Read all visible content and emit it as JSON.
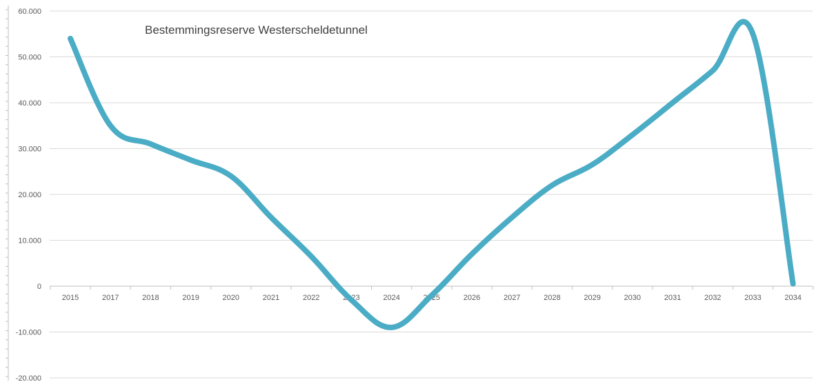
{
  "chart_data": {
    "type": "line",
    "title": "Bestemmingsreserve Westerscheldetunnel",
    "xlabel": "",
    "ylabel": "",
    "categories": [
      "2015",
      "2017",
      "2018",
      "2019",
      "2020",
      "2021",
      "2022",
      "2023",
      "2024",
      "2025",
      "2026",
      "2027",
      "2028",
      "2029",
      "2030",
      "2031",
      "2032",
      "2033",
      "2034"
    ],
    "series": [
      {
        "values": [
          54000,
          35000,
          31000,
          27500,
          24000,
          15000,
          6500,
          -3000,
          -9000,
          -2000,
          7000,
          15000,
          22000,
          26500,
          33000,
          40000,
          47000,
          55000,
          500
        ],
        "color": "#4bacc6"
      }
    ],
    "y_ticks": [
      60000,
      50000,
      40000,
      30000,
      20000,
      10000,
      0,
      -10000,
      -20000
    ],
    "y_tick_labels": [
      "60.000",
      "50.000",
      "40.000",
      "30.000",
      "20.000",
      "10.000",
      "0",
      "-10.000",
      "-20.000"
    ],
    "ylim": [
      -20000,
      60000
    ],
    "grid": true,
    "legend": "none"
  }
}
